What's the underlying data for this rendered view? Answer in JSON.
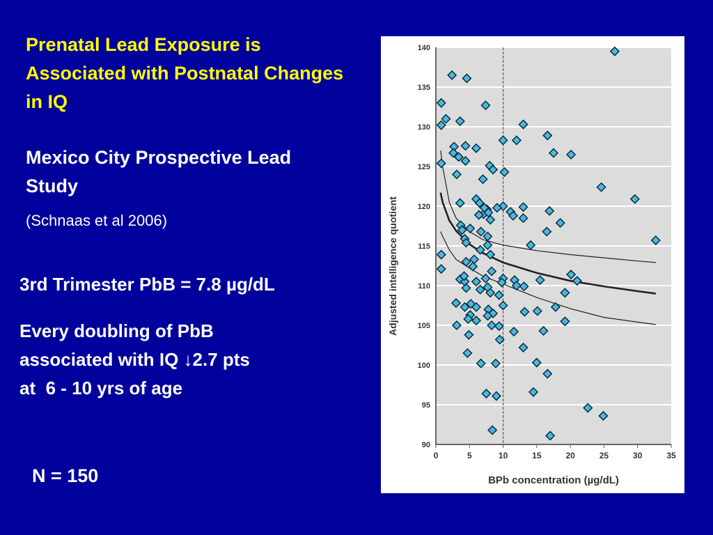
{
  "slide": {
    "title": "Prenatal Lead Exposure is Associated with Postnatal Changes in IQ",
    "subtitle": "Mexico City Prospective Lead Study",
    "citation": "(Schnaas et al 2006)",
    "line1": "3rd Trimester PbB = 7.8 µg/dL",
    "line2_a": "Every doubling of PbB",
    "line2_b": "associated with IQ ",
    "line2_arrow": "↓",
    "line2_c": "2.7 pts",
    "line2_d": "at  6 - 10 yrs of age",
    "n_label": "N = 150",
    "colors": {
      "background": "#00009c",
      "title": "#ffff00",
      "text": "#ffffff",
      "point": "#4ab8e0",
      "plot_bg": "#dcdcdc"
    }
  },
  "chart_data": {
    "type": "scatter",
    "xlabel": "BPb concentration (µg/dL)",
    "ylabel": "Adjusted intelligence quotient",
    "xlim": [
      0,
      35
    ],
    "ylim": [
      90,
      140
    ],
    "xticks": [
      0,
      5,
      10,
      15,
      20,
      25,
      30,
      35
    ],
    "yticks": [
      90,
      95,
      100,
      105,
      110,
      115,
      120,
      125,
      130,
      135,
      140
    ],
    "grid": "horizontal",
    "reference_line_x": 10,
    "points": [
      [
        26.6,
        139.5
      ],
      [
        2.4,
        136.5
      ],
      [
        4.6,
        136.1
      ],
      [
        0.8,
        133.0
      ],
      [
        7.4,
        132.7
      ],
      [
        1.5,
        131.0
      ],
      [
        0.8,
        130.2
      ],
      [
        3.6,
        130.7
      ],
      [
        13.0,
        130.3
      ],
      [
        16.6,
        128.9
      ],
      [
        10.0,
        128.3
      ],
      [
        12.0,
        128.3
      ],
      [
        17.5,
        126.7
      ],
      [
        20.1,
        126.5
      ],
      [
        2.7,
        127.5
      ],
      [
        4.4,
        127.6
      ],
      [
        6.0,
        127.3
      ],
      [
        2.6,
        126.7
      ],
      [
        3.4,
        126.2
      ],
      [
        4.4,
        125.7
      ],
      [
        0.8,
        125.4
      ],
      [
        8.0,
        125.1
      ],
      [
        8.5,
        124.6
      ],
      [
        10.2,
        124.3
      ],
      [
        3.1,
        124.0
      ],
      [
        7.0,
        123.4
      ],
      [
        24.6,
        122.4
      ],
      [
        29.6,
        120.9
      ],
      [
        6.0,
        120.9
      ],
      [
        6.5,
        120.4
      ],
      [
        3.6,
        120.4
      ],
      [
        10.0,
        120.0
      ],
      [
        13.0,
        119.9
      ],
      [
        16.9,
        119.4
      ],
      [
        11.1,
        119.3
      ],
      [
        11.5,
        118.8
      ],
      [
        13.0,
        118.5
      ],
      [
        9.1,
        119.8
      ],
      [
        7.6,
        119.6
      ],
      [
        7.1,
        119.0
      ],
      [
        7.8,
        119.2
      ],
      [
        8.1,
        118.3
      ],
      [
        6.4,
        118.9
      ],
      [
        7.2,
        119.8
      ],
      [
        18.5,
        117.9
      ],
      [
        3.7,
        117.6
      ],
      [
        3.9,
        117.0
      ],
      [
        5.1,
        117.2
      ],
      [
        6.7,
        116.8
      ],
      [
        16.5,
        116.8
      ],
      [
        7.7,
        116.2
      ],
      [
        4.3,
        115.9
      ],
      [
        4.5,
        115.4
      ],
      [
        7.7,
        115.1
      ],
      [
        14.1,
        115.1
      ],
      [
        32.7,
        115.7
      ],
      [
        6.6,
        114.5
      ],
      [
        8.1,
        113.9
      ],
      [
        0.8,
        113.9
      ],
      [
        0.8,
        112.1
      ],
      [
        4.5,
        113.0
      ],
      [
        5.7,
        113.3
      ],
      [
        5.5,
        112.4
      ],
      [
        8.3,
        111.8
      ],
      [
        3.6,
        110.8
      ],
      [
        4.3,
        110.5
      ],
      [
        4.5,
        109.7
      ],
      [
        4.2,
        111.2
      ],
      [
        6.0,
        110.5
      ],
      [
        7.4,
        110.9
      ],
      [
        7.7,
        109.8
      ],
      [
        6.6,
        109.5
      ],
      [
        8.1,
        109.1
      ],
      [
        10.0,
        110.9
      ],
      [
        9.8,
        110.4
      ],
      [
        11.7,
        110.7
      ],
      [
        12.0,
        110.0
      ],
      [
        13.1,
        109.9
      ],
      [
        15.5,
        110.7
      ],
      [
        20.1,
        111.4
      ],
      [
        21.0,
        110.6
      ],
      [
        19.2,
        109.1
      ],
      [
        9.4,
        108.8
      ],
      [
        3.0,
        107.8
      ],
      [
        4.3,
        107.3
      ],
      [
        5.2,
        107.7
      ],
      [
        6.0,
        107.3
      ],
      [
        7.8,
        107.0
      ],
      [
        8.5,
        106.5
      ],
      [
        10.0,
        107.5
      ],
      [
        13.2,
        106.7
      ],
      [
        15.1,
        106.8
      ],
      [
        17.8,
        107.3
      ],
      [
        5.1,
        106.3
      ],
      [
        7.7,
        106.2
      ],
      [
        4.8,
        105.8
      ],
      [
        6.0,
        105.6
      ],
      [
        3.1,
        105.0
      ],
      [
        8.3,
        105.0
      ],
      [
        9.4,
        104.9
      ],
      [
        19.2,
        105.5
      ],
      [
        16.0,
        104.3
      ],
      [
        11.6,
        104.2
      ],
      [
        4.9,
        103.8
      ],
      [
        9.5,
        103.2
      ],
      [
        13.0,
        102.2
      ],
      [
        4.7,
        101.5
      ],
      [
        6.7,
        100.2
      ],
      [
        8.9,
        100.2
      ],
      [
        15.0,
        100.3
      ],
      [
        16.6,
        98.9
      ],
      [
        7.5,
        96.4
      ],
      [
        9.0,
        96.1
      ],
      [
        14.5,
        96.6
      ],
      [
        22.6,
        94.6
      ],
      [
        24.9,
        93.6
      ],
      [
        8.4,
        91.8
      ],
      [
        17.0,
        91.1
      ]
    ],
    "curves": {
      "x": [
        0.7,
        1,
        2,
        3,
        5,
        7,
        10,
        15,
        20,
        25,
        30,
        32.7
      ],
      "fit": [
        121.7,
        120.5,
        118.2,
        116.9,
        115.2,
        114.1,
        112.9,
        111.6,
        110.6,
        109.9,
        109.3,
        109.0
      ],
      "upper": [
        127.0,
        125.0,
        120.5,
        118.5,
        116.8,
        115.8,
        115.1,
        114.4,
        113.9,
        113.5,
        113.1,
        112.9
      ],
      "lower": [
        116.8,
        116.2,
        114.5,
        113.3,
        112.2,
        111.2,
        110.2,
        108.5,
        107.1,
        106.0,
        105.4,
        105.1
      ]
    }
  }
}
